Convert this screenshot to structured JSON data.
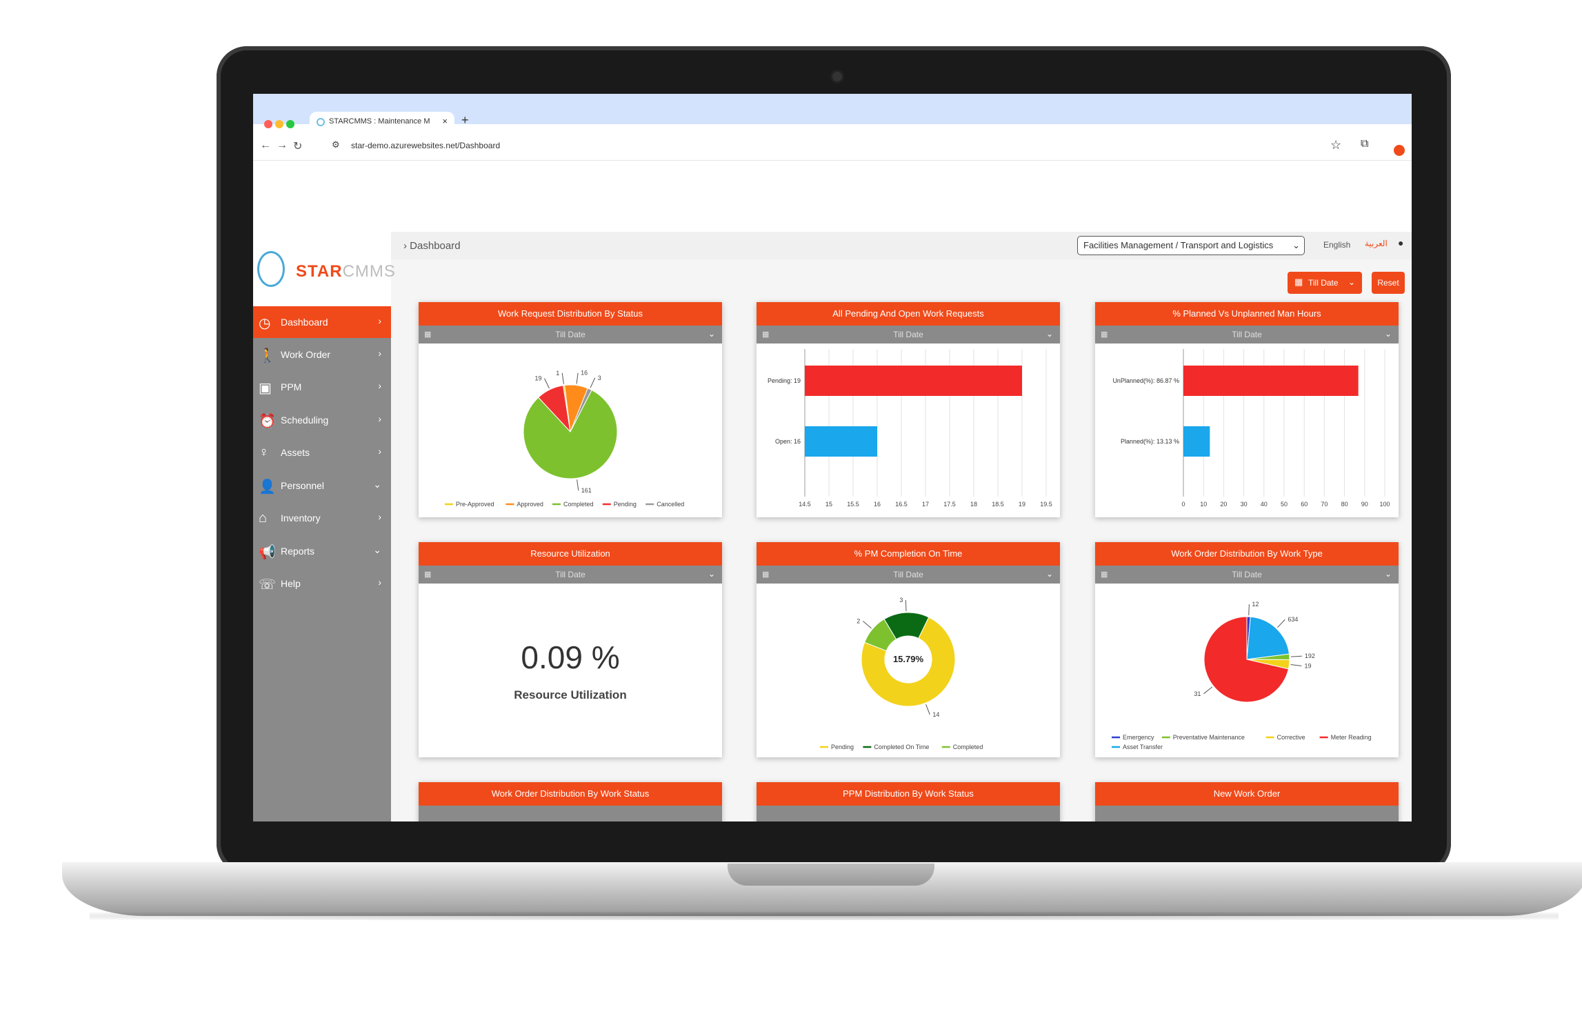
{
  "browser": {
    "tab_title": "STARCMMS : Maintenance M",
    "url": "star-demo.azurewebsites.net/Dashboard"
  },
  "logo": {
    "star": "STAR",
    "cmms": "CMMS"
  },
  "sidebar": {
    "items": [
      {
        "label": "Dashboard",
        "icon": "dashboard-icon",
        "chevron": "›"
      },
      {
        "label": "Work Order",
        "icon": "walker-icon",
        "chevron": "›"
      },
      {
        "label": "PPM",
        "icon": "clipboard-icon",
        "chevron": "›"
      },
      {
        "label": "Scheduling",
        "icon": "clock-icon",
        "chevron": "›"
      },
      {
        "label": "Assets",
        "icon": "bulb-icon",
        "chevron": "›"
      },
      {
        "label": "Personnel",
        "icon": "user-icon",
        "chevron": "⌄"
      },
      {
        "label": "Inventory",
        "icon": "home-icon",
        "chevron": "›"
      },
      {
        "label": "Reports",
        "icon": "megaphone-icon",
        "chevron": "⌄"
      },
      {
        "label": "Help",
        "icon": "phone-icon",
        "chevron": "›"
      }
    ]
  },
  "header": {
    "breadcrumb": "Dashboard",
    "site": "Facilities Management / Transport and Logistics",
    "lang_en": "English",
    "lang_ar": "العربية",
    "date_button": "Till Date",
    "reset_button": "Reset"
  },
  "cards": [
    {
      "title": "Work Request Distribution By Status",
      "filter": "Till Date"
    },
    {
      "title": "All Pending And Open Work Requests",
      "filter": "Till Date"
    },
    {
      "title": "% Planned Vs Unplanned Man Hours",
      "filter": "Till Date"
    },
    {
      "title": "Resource Utilization",
      "filter": "Till Date"
    },
    {
      "title": "% PM Completion On Time",
      "filter": "Till Date"
    },
    {
      "title": "Work Order Distribution By Work Type",
      "filter": "Till Date"
    },
    {
      "title": "Work Order Distribution By Work Status"
    },
    {
      "title": "PPM Distribution By Work Status"
    },
    {
      "title": "New Work Order"
    }
  ],
  "resource_utilization": {
    "value": "0.09 %",
    "label": "Resource Utilization"
  },
  "chart_data": [
    {
      "type": "pie",
      "title": "Work Request Distribution By Status",
      "labels": [
        "Pre-Approved",
        "Approved",
        "Completed",
        "Pending",
        "Cancelled"
      ],
      "values": [
        1,
        16,
        161,
        19,
        3
      ],
      "colors": [
        "#f2d21b",
        "#ff8c1a",
        "#7dc22e",
        "#f03030",
        "#9a9a9a"
      ]
    },
    {
      "type": "bar",
      "orientation": "horizontal",
      "title": "All Pending And Open Work Requests",
      "categories": [
        "Pending: 19",
        "Open: 16"
      ],
      "values": [
        19,
        16
      ],
      "colors": [
        "#f22a2a",
        "#1aa7ec"
      ],
      "xlim": [
        14.5,
        19.5
      ],
      "xticks": [
        "14.5",
        "15",
        "15.5",
        "16",
        "16.5",
        "17",
        "17.5",
        "18",
        "18.5",
        "19",
        "19.5"
      ]
    },
    {
      "type": "bar",
      "orientation": "horizontal",
      "title": "% Planned Vs Unplanned Man Hours",
      "categories": [
        "UnPlanned(%): 86.87 %",
        "Planned(%): 13.13 %"
      ],
      "values": [
        86.87,
        13.13
      ],
      "colors": [
        "#f22a2a",
        "#1aa7ec"
      ],
      "xlim": [
        0,
        100
      ],
      "xticks": [
        "0",
        "10",
        "20",
        "30",
        "40",
        "50",
        "60",
        "70",
        "80",
        "90",
        "100"
      ]
    },
    {
      "type": "pie",
      "donut": true,
      "title": "% PM Completion On Time",
      "labels": [
        "Pending",
        "Completed On Time",
        "Completed"
      ],
      "values": [
        14,
        3,
        2
      ],
      "colors": [
        "#f2d21b",
        "#0b6b14",
        "#7dc22e"
      ],
      "center_label": "15.79%"
    },
    {
      "type": "pie",
      "title": "Work Order Distribution By Work Type",
      "labels": [
        "Emergency",
        "Preventative Maintenance",
        "Corrective",
        "Meter Reading",
        "Asset Transfer"
      ],
      "values": [
        12,
        19,
        31,
        634,
        192
      ],
      "colors": [
        "#2d3fd1",
        "#7dc22e",
        "#f2d21b",
        "#f22a2a",
        "#1aa7ec"
      ],
      "slice_labels": [
        "12",
        "192",
        "19",
        "31",
        "634"
      ]
    }
  ]
}
